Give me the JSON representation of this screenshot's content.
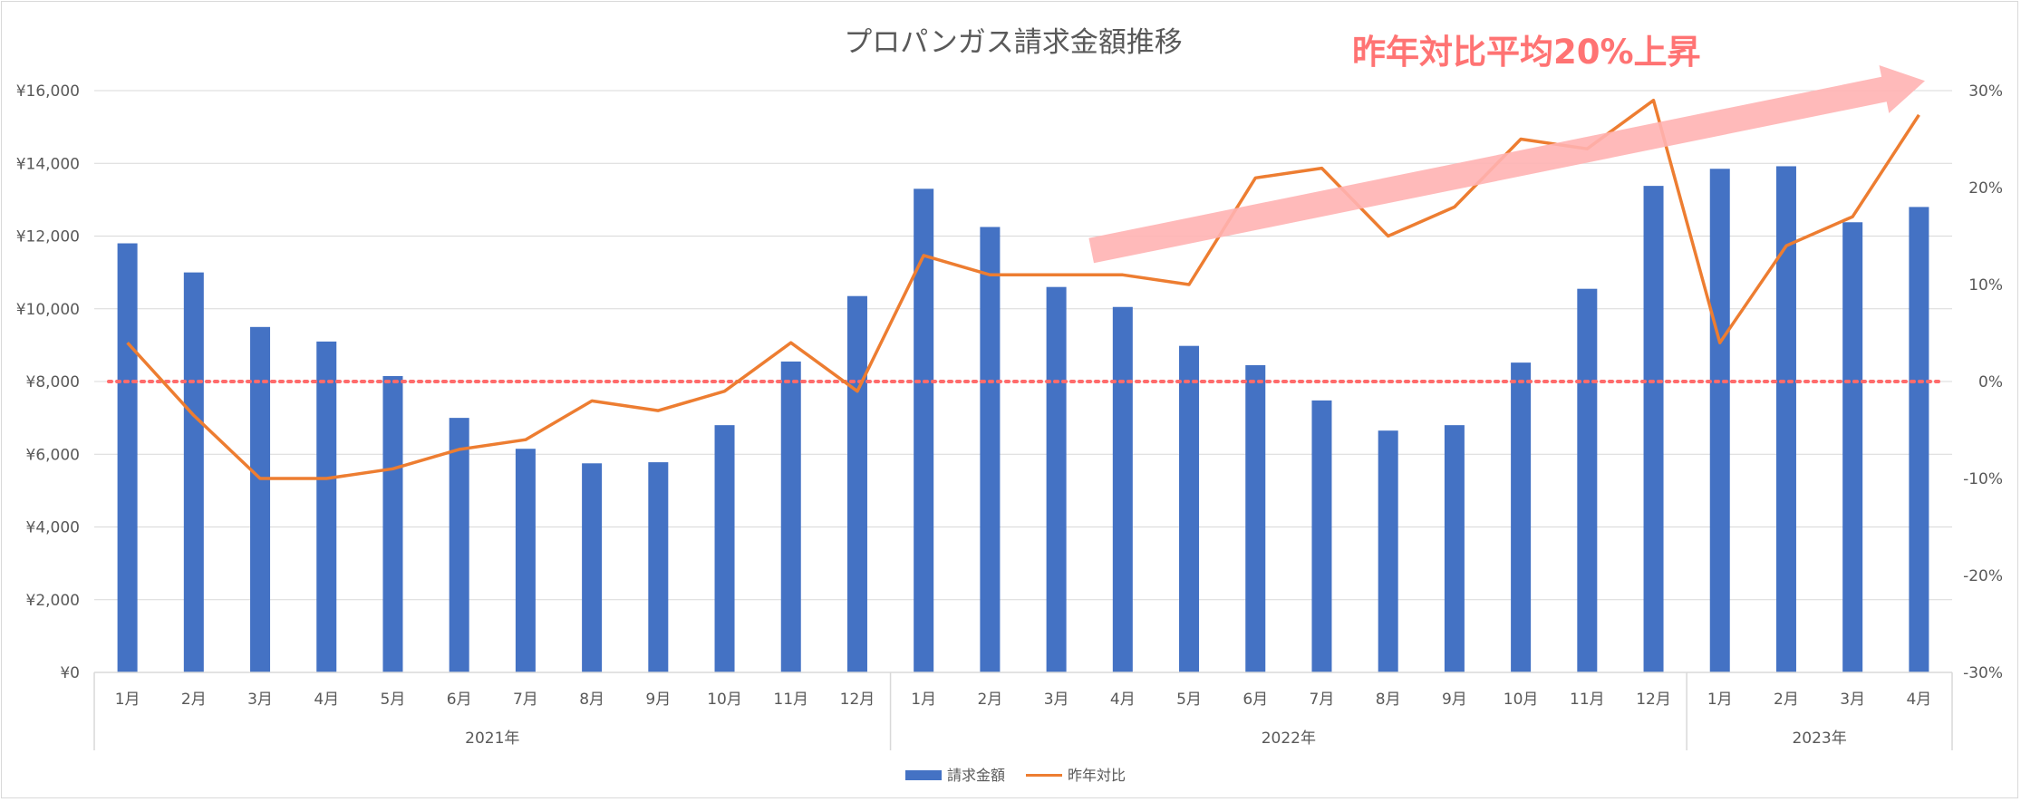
{
  "chart_data": {
    "type": "bar",
    "title": "プロパンガス請求金額推移",
    "categories": [
      "1月",
      "2月",
      "3月",
      "4月",
      "5月",
      "6月",
      "7月",
      "8月",
      "9月",
      "10月",
      "11月",
      "12月",
      "1月",
      "2月",
      "3月",
      "4月",
      "5月",
      "6月",
      "7月",
      "8月",
      "9月",
      "10月",
      "11月",
      "12月",
      "1月",
      "2月",
      "3月",
      "4月"
    ],
    "year_groups": [
      {
        "label": "2021年",
        "count": 12
      },
      {
        "label": "2022年",
        "count": 12
      },
      {
        "label": "2023年",
        "count": 4
      }
    ],
    "series": [
      {
        "name": "請求金額",
        "type": "bar",
        "axis": "left",
        "color": "#4472c4",
        "values": [
          11800,
          11000,
          9500,
          9100,
          8150,
          7000,
          6150,
          5750,
          5780,
          6800,
          8550,
          10350,
          13300,
          12250,
          10600,
          10050,
          8980,
          8450,
          7480,
          6650,
          6800,
          8520,
          10550,
          13380,
          13850,
          13920,
          12380,
          12800
        ]
      },
      {
        "name": "昨年対比",
        "type": "line",
        "axis": "right",
        "color": "#ed7d31",
        "values": [
          4,
          -3.5,
          -10,
          -10,
          -9,
          -7,
          -6,
          -2,
          -3,
          -1,
          4,
          -1,
          13,
          11,
          11,
          11,
          10,
          21,
          22,
          15,
          18,
          25,
          24,
          29,
          4,
          14,
          17,
          27.5
        ]
      }
    ],
    "left_axis": {
      "ylim": [
        0,
        16000
      ],
      "ticks": [
        "¥0",
        "¥2,000",
        "¥4,000",
        "¥6,000",
        "¥8,000",
        "¥10,000",
        "¥12,000",
        "¥14,000",
        "¥16,000"
      ]
    },
    "right_axis": {
      "ylim": [
        -30,
        30
      ],
      "ticks": [
        "-30%",
        "-20%",
        "-10%",
        "0%",
        "10%",
        "20%",
        "30%"
      ]
    },
    "reference_line": {
      "axis": "right",
      "value": 0,
      "color": "#ff6b6b",
      "style": "dotted"
    },
    "annotation": {
      "text": "昨年対比平均20%上昇",
      "color": "#ff7373",
      "arrow_color": "#ffb3b3",
      "arrow_from": {
        "category_index": 15,
        "value": 13.5
      },
      "arrow_to": {
        "category_index": 28,
        "value": 31
      }
    },
    "legend": {
      "position": "bottom",
      "entries": [
        "請求金額",
        "昨年対比"
      ]
    },
    "grid": true
  }
}
